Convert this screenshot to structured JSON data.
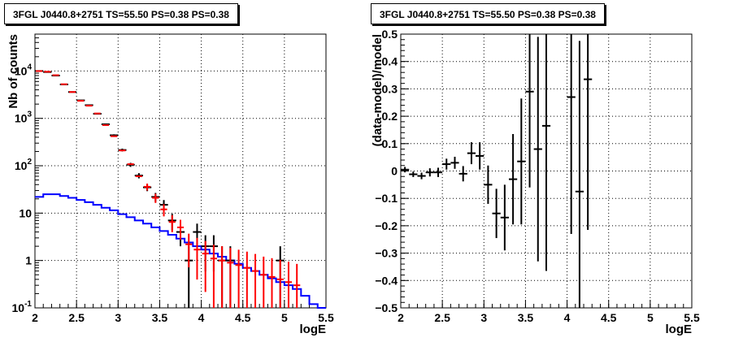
{
  "chart_data": [
    {
      "type": "histogram-errorbar",
      "title": "3FGL J0440.8+2751 TS=55.50 PS=0.38 PS=0.38",
      "xlabel": "logE",
      "ylabel": "Nb of counts",
      "xlim": [
        2,
        5.5
      ],
      "ylim": [
        0.1,
        60000
      ],
      "yscale": "log",
      "grid": true,
      "x_ticks": [
        "2",
        "2.5",
        "3",
        "3.5",
        "4",
        "4.5",
        "5",
        "5.5"
      ],
      "y_ticks": [
        {
          "base": "10",
          "exp": "-1",
          "value": 0.1
        },
        {
          "base": "1",
          "exp": "",
          "value": 1
        },
        {
          "base": "10",
          "exp": "",
          "value": 10
        },
        {
          "base": "10",
          "exp": "2",
          "value": 100
        },
        {
          "base": "10",
          "exp": "3",
          "value": 1000
        },
        {
          "base": "10",
          "exp": "4",
          "value": 10000
        }
      ],
      "series": [
        {
          "kind": "data",
          "color": "#000000",
          "x": [
            2.05,
            2.15,
            2.25,
            2.35,
            2.45,
            2.55,
            2.65,
            2.75,
            2.85,
            2.95,
            3.05,
            3.15,
            3.25,
            3.35,
            3.45,
            3.55,
            3.65,
            3.75,
            3.85,
            3.95,
            4.05,
            4.15,
            4.25,
            4.35,
            4.45,
            4.55,
            4.65,
            4.75,
            4.85,
            4.95,
            5.05,
            5.15,
            5.25,
            5.35,
            5.45
          ],
          "y": [
            10000,
            9500,
            8000,
            5200,
            3600,
            2400,
            1900,
            1250,
            750,
            440,
            215,
            105,
            62,
            35,
            22,
            15,
            7,
            4,
            1,
            4,
            2,
            2,
            1,
            1,
            0,
            0,
            0,
            0,
            0,
            1,
            0,
            0,
            0,
            0,
            0
          ]
        },
        {
          "kind": "model_total",
          "color": "#ff0000",
          "x": [
            2.05,
            2.15,
            2.25,
            2.35,
            2.45,
            2.55,
            2.65,
            2.75,
            2.85,
            2.95,
            3.05,
            3.15,
            3.25,
            3.35,
            3.45,
            3.55,
            3.65,
            3.75,
            3.85,
            3.95,
            4.05,
            4.15,
            4.25,
            4.35,
            4.45,
            4.55,
            4.65,
            4.75,
            4.85,
            4.95,
            5.05,
            5.15
          ],
          "y": [
            9950,
            9650,
            8150,
            5250,
            3600,
            2350,
            1850,
            1270,
            720,
            420,
            210,
            108,
            60,
            36,
            21,
            12,
            6.5,
            5,
            2.2,
            1.7,
            1.4,
            1.1,
            1.0,
            0.9,
            0.8,
            0.7,
            0.6,
            0.5,
            0.45,
            0.4,
            0.35,
            0.3
          ]
        },
        {
          "kind": "model_source",
          "color": "#0000ff",
          "x": [
            2.05,
            2.15,
            2.25,
            2.35,
            2.45,
            2.55,
            2.65,
            2.75,
            2.85,
            2.95,
            3.05,
            3.15,
            3.25,
            3.35,
            3.45,
            3.55,
            3.65,
            3.75,
            3.85,
            3.95,
            4.05,
            4.15,
            4.25,
            4.35,
            4.45,
            4.55,
            4.65,
            4.75,
            4.85,
            4.95,
            5.05,
            5.15,
            5.25,
            5.35,
            5.45
          ],
          "y": [
            22,
            25,
            25,
            23,
            21,
            19,
            17,
            15,
            13,
            11.5,
            9.5,
            8.2,
            7,
            6,
            5,
            4.2,
            3.5,
            2.9,
            2.4,
            2,
            1.7,
            1.4,
            1.2,
            1.0,
            0.85,
            0.7,
            0.6,
            0.5,
            0.42,
            0.35,
            0.3,
            0.25,
            0.18,
            0.12,
            0.1
          ]
        }
      ]
    },
    {
      "type": "errorbar",
      "title": "3FGL J0440.8+2751 TS=55.50 PS=0.38 PS=0.38",
      "xlabel": "logE",
      "ylabel": "(data-model)/model",
      "xlim": [
        2,
        5.5
      ],
      "ylim": [
        -0.5,
        0.5
      ],
      "grid": true,
      "x_ticks": [
        "2",
        "2.5",
        "3",
        "3.5",
        "4",
        "4.5",
        "5",
        "5.5"
      ],
      "y_ticks": [
        "−0.5",
        "−0.4",
        "−0.3",
        "−0.2",
        "−0.1",
        "0",
        "0.1",
        "0.2",
        "0.3",
        "0.4",
        "0.5"
      ],
      "points": {
        "x": [
          2.05,
          2.15,
          2.25,
          2.35,
          2.45,
          2.55,
          2.65,
          2.75,
          2.85,
          2.95,
          3.05,
          3.15,
          3.25,
          3.35,
          3.45,
          3.55,
          3.65,
          3.75,
          4.05,
          4.15,
          4.25
        ],
        "y": [
          0.005,
          -0.012,
          -0.018,
          -0.005,
          -0.005,
          0.025,
          0.03,
          -0.01,
          0.065,
          0.055,
          -0.05,
          -0.155,
          -0.17,
          -0.03,
          0.035,
          0.29,
          0.08,
          0.165,
          0.27,
          -0.075,
          0.335
        ],
        "err": [
          0.01,
          0.01,
          0.012,
          0.015,
          0.017,
          0.02,
          0.022,
          0.028,
          0.04,
          0.05,
          0.07,
          0.09,
          0.12,
          0.165,
          0.23,
          0.35,
          0.41,
          0.53,
          0.5,
          0.55,
          0.55
        ]
      }
    }
  ]
}
